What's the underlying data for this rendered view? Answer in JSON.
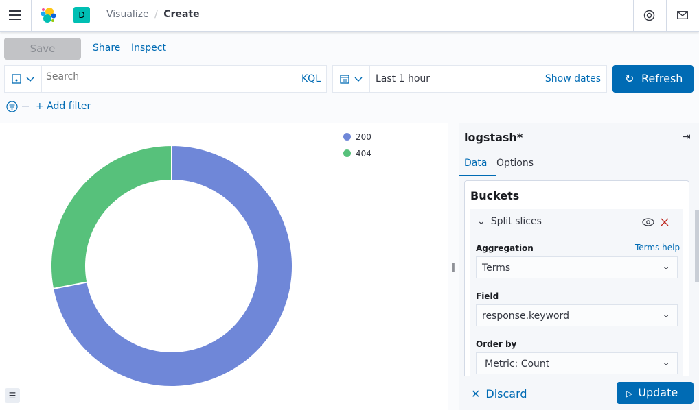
{
  "header": {
    "breadcrumbs": [
      "Visualize",
      "Create"
    ],
    "space_initial": "D",
    "space_color": "#00bfb3"
  },
  "toolbar": {
    "save": "Save",
    "share": "Share",
    "inspect": "Inspect"
  },
  "query": {
    "placeholder": "Search",
    "language": "KQL"
  },
  "time": {
    "range": "Last 1 hour",
    "show_dates": "Show dates",
    "refresh": "Refresh"
  },
  "filter": {
    "add": "+ Add filter"
  },
  "legend": [
    {
      "label": "200",
      "color": "#6f87d8"
    },
    {
      "label": "404",
      "color": "#54b399"
    }
  ],
  "chart_data": {
    "type": "pie",
    "donut": true,
    "categories": [
      "200",
      "404"
    ],
    "values": [
      72,
      28
    ],
    "colors": [
      "#6f87d8",
      "#57c17b"
    ],
    "legend_position": "top-right"
  },
  "panel": {
    "index_pattern": "logstash*",
    "tabs": [
      "Data",
      "Options"
    ],
    "active_tab": "Data",
    "section": "Buckets",
    "bucket_title": "Split slices",
    "aggregation_label": "Aggregation",
    "terms_help": "Terms help",
    "aggregation": "Terms",
    "field_label": "Field",
    "field": "response.keyword",
    "order_label": "Order by",
    "order": "Metric: Count",
    "discard": "Discard",
    "update": "Update"
  }
}
